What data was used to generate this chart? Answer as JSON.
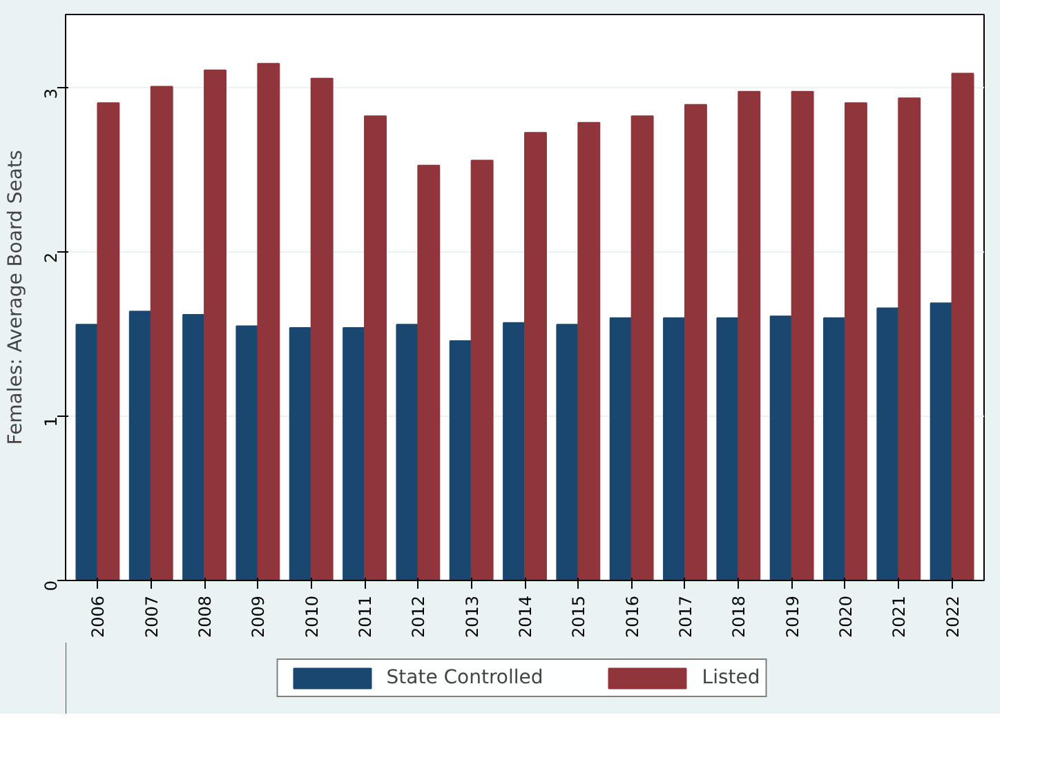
{
  "chart_data": {
    "type": "bar",
    "ylabel": "Females: Average Board Seats",
    "categories": [
      "2006",
      "2007",
      "2008",
      "2009",
      "2010",
      "2011",
      "2012",
      "2013",
      "2014",
      "2015",
      "2016",
      "2017",
      "2018",
      "2019",
      "2020",
      "2021",
      "2022"
    ],
    "series": [
      {
        "name": "State Controlled",
        "color": "#1a476f",
        "values": [
          1.56,
          1.64,
          1.62,
          1.55,
          1.54,
          1.54,
          1.56,
          1.46,
          1.57,
          1.56,
          1.6,
          1.6,
          1.6,
          1.61,
          1.6,
          1.66,
          1.69
        ]
      },
      {
        "name": "Listed",
        "color": "#90353b",
        "values": [
          2.91,
          3.01,
          3.11,
          3.15,
          3.06,
          2.83,
          2.53,
          2.56,
          2.73,
          2.79,
          2.83,
          2.9,
          2.98,
          2.98,
          2.91,
          2.94,
          3.09
        ]
      }
    ],
    "ylim": [
      0,
      3.45
    ],
    "yticks": [
      0,
      1,
      2,
      3
    ],
    "grid": "y",
    "legend": "bottom"
  }
}
